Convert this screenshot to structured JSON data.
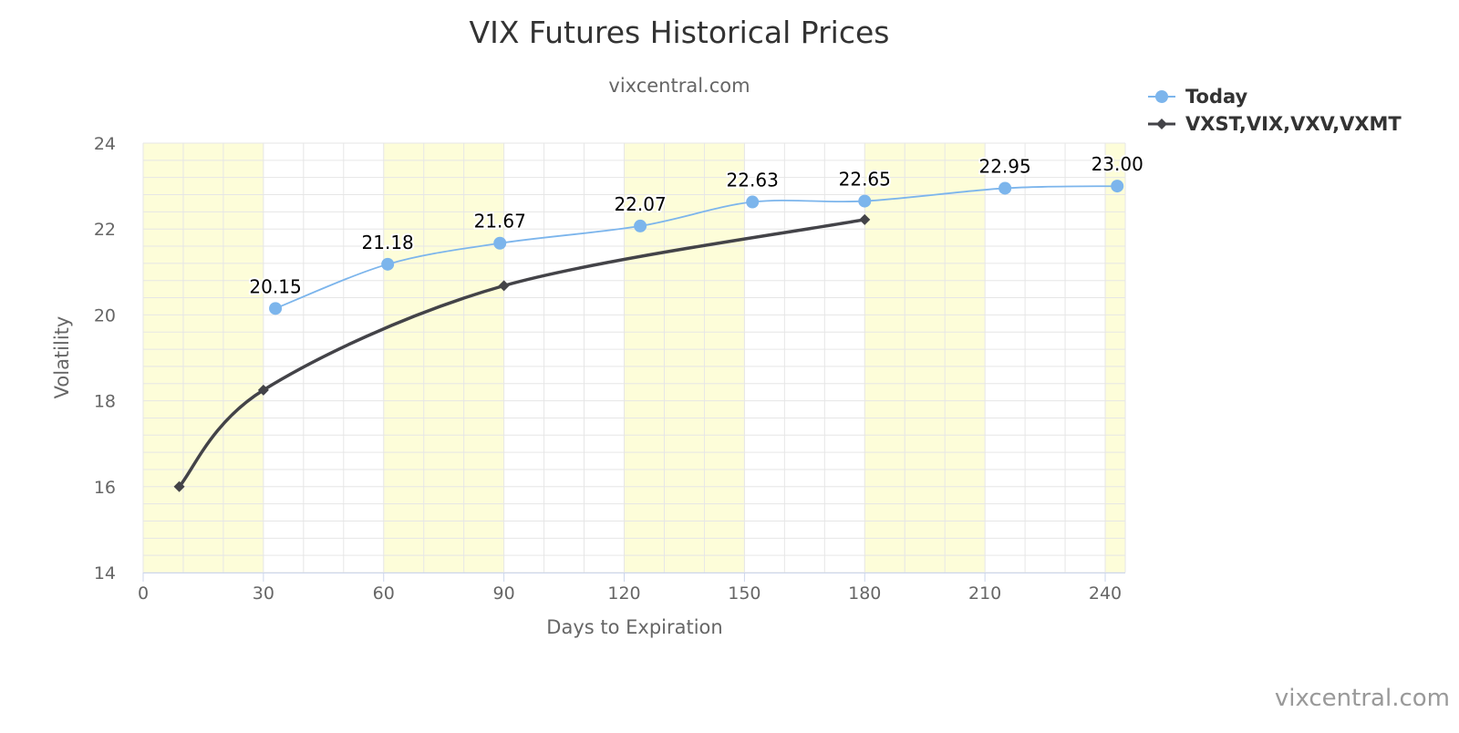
{
  "chart_data": {
    "type": "line",
    "title": "VIX Futures Historical Prices",
    "subtitle": "vixcentral.com",
    "xlabel": "Days to Expiration",
    "ylabel": "Volatility",
    "xlim": [
      0,
      245
    ],
    "ylim": [
      14,
      24
    ],
    "x_ticks": [
      0,
      30,
      60,
      90,
      120,
      150,
      180,
      210,
      240
    ],
    "y_ticks": [
      14,
      16,
      18,
      20,
      22,
      24
    ],
    "grid": true,
    "legend_position": "top-right",
    "shaded_bands": [
      [
        0,
        30
      ],
      [
        60,
        90
      ],
      [
        120,
        150
      ],
      [
        180,
        210
      ],
      [
        240,
        245
      ]
    ],
    "band_color": "#FDFDD9",
    "series": [
      {
        "name": "Today",
        "color": "#7CB5EC",
        "marker": "circle",
        "show_labels": true,
        "points": [
          {
            "x": 33,
            "y": 20.15,
            "label": "20.15"
          },
          {
            "x": 61,
            "y": 21.18,
            "label": "21.18"
          },
          {
            "x": 89,
            "y": 21.67,
            "label": "21.67"
          },
          {
            "x": 124,
            "y": 22.07,
            "label": "22.07"
          },
          {
            "x": 152,
            "y": 22.63,
            "label": "22.63"
          },
          {
            "x": 180,
            "y": 22.65,
            "label": "22.65"
          },
          {
            "x": 215,
            "y": 22.95,
            "label": "22.95"
          },
          {
            "x": 243,
            "y": 23.0,
            "label": "23.00"
          }
        ]
      },
      {
        "name": "VXST,VIX,VXV,VXMT",
        "color": "#434348",
        "marker": "diamond",
        "show_labels": false,
        "points": [
          {
            "x": 9,
            "y": 16.0
          },
          {
            "x": 30,
            "y": 18.25
          },
          {
            "x": 90,
            "y": 20.68
          },
          {
            "x": 180,
            "y": 22.22
          }
        ]
      }
    ]
  },
  "credit": "vixcentral.com"
}
